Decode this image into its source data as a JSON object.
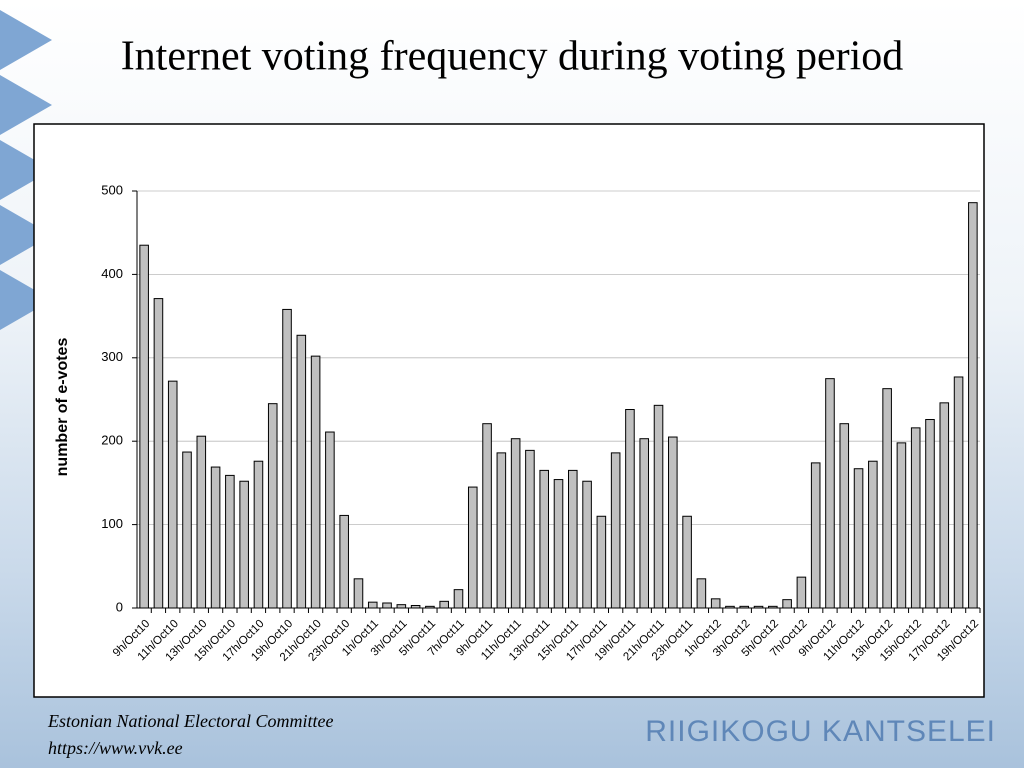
{
  "chart_data": {
    "type": "bar",
    "title": "Internet voting frequency during voting period",
    "y_label": "number of e-votes",
    "categories": [
      "9h/Oct10",
      null,
      "11h/Oct10",
      null,
      "13h/Oct10",
      null,
      "15h/Oct10",
      null,
      "17h/Oct10",
      null,
      "19h/Oct10",
      null,
      "21h/Oct10",
      null,
      "23h/Oct10",
      null,
      "1h/Oct11",
      null,
      "3h/Oct11",
      null,
      "5h/Oct11",
      null,
      "7h/Oct11",
      null,
      "9h/Oct11",
      null,
      "11h/Oct11",
      null,
      "13h/Oct11",
      null,
      "15h/Oct11",
      null,
      "17h/Oct11",
      null,
      "19h/Oct11",
      null,
      "21h/Oct11",
      null,
      "23h/Oct11",
      null,
      "1h/Oct12",
      null,
      "3h/Oct12",
      null,
      "5h/Oct12",
      null,
      "7h/Oct12",
      null,
      "9h/Oct12",
      null,
      "11h/Oct12",
      null,
      "13h/Oct12",
      null,
      "15h/Oct12",
      null,
      "17h/Oct12",
      null,
      "19h/Oct12"
    ],
    "values": [
      435,
      371,
      272,
      187,
      206,
      169,
      159,
      152,
      176,
      245,
      358,
      327,
      302,
      211,
      111,
      35,
      7,
      6,
      4,
      3,
      2,
      8,
      22,
      145,
      221,
      186,
      203,
      189,
      165,
      154,
      165,
      152,
      110,
      186,
      238,
      203,
      243,
      205,
      110,
      35,
      11,
      2,
      2,
      2,
      2,
      10,
      37,
      174,
      275,
      221,
      167,
      176,
      263,
      198,
      216,
      226,
      246,
      277,
      486
    ],
    "color": "#c0c0c0",
    "ylim": [
      0,
      500
    ],
    "yticks": [
      0,
      100,
      200,
      300,
      400,
      500
    ],
    "grid": true
  },
  "footer": {
    "source": "Estonian National Electoral Committee",
    "url": "https://www.vvk.ee"
  },
  "logo": "RIIGIKOGU KANTSELEI"
}
